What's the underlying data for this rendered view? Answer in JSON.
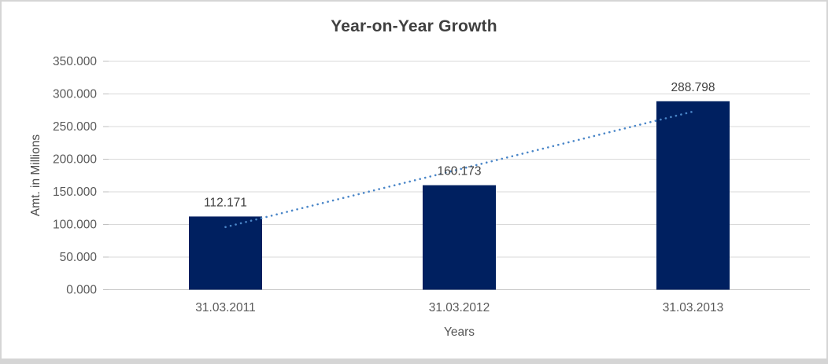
{
  "window": {
    "background": "#ffffff",
    "border_color": "#d5d5d5"
  },
  "chart_data": {
    "type": "bar",
    "title": "Year-on-Year Growth",
    "xlabel": "Years",
    "ylabel": "Amt. in Millions",
    "categories": [
      "31.03.2011",
      "31.03.2012",
      "31.03.2013"
    ],
    "values": [
      112.171,
      160.173,
      288.798
    ],
    "value_labels": [
      "112.171",
      "160.173",
      "288.798"
    ],
    "ylim": [
      0,
      350
    ],
    "ytick_step": 50,
    "ytick_labels": [
      "0.000",
      "50.000",
      "100.000",
      "150.000",
      "200.000",
      "250.000",
      "300.000",
      "350.000"
    ],
    "grid": true,
    "legend": "none",
    "colors": {
      "bar": "#002060",
      "gridline": "#d9d9d9",
      "baseline": "#c6c6c6",
      "tick_mark": "#bfbfbf",
      "tick_label": "#595959",
      "data_label": "#404040",
      "title": "#404040"
    },
    "trendline": {
      "type": "linear",
      "style": "dotted",
      "color": "#4a86c8",
      "start_value": 96,
      "end_value": 273
    }
  }
}
